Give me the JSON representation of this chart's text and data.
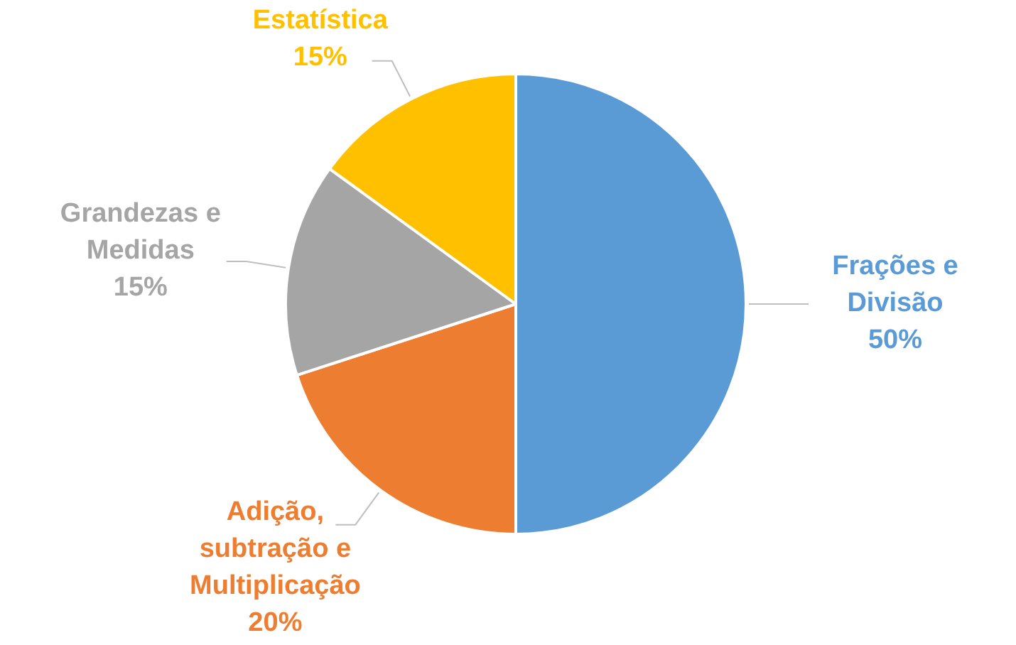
{
  "chart_data": {
    "type": "pie",
    "categories": [
      "Frações e Divisão",
      "Adição, subtração e Multiplicação",
      "Grandezas e Medidas",
      "Estatística"
    ],
    "values": [
      50,
      20,
      15,
      15
    ],
    "value_labels": [
      "50%",
      "20%",
      "15%",
      "15%"
    ],
    "colors": [
      "#5b9bd5",
      "#ed7d31",
      "#a5a5a5",
      "#ffc000"
    ]
  }
}
